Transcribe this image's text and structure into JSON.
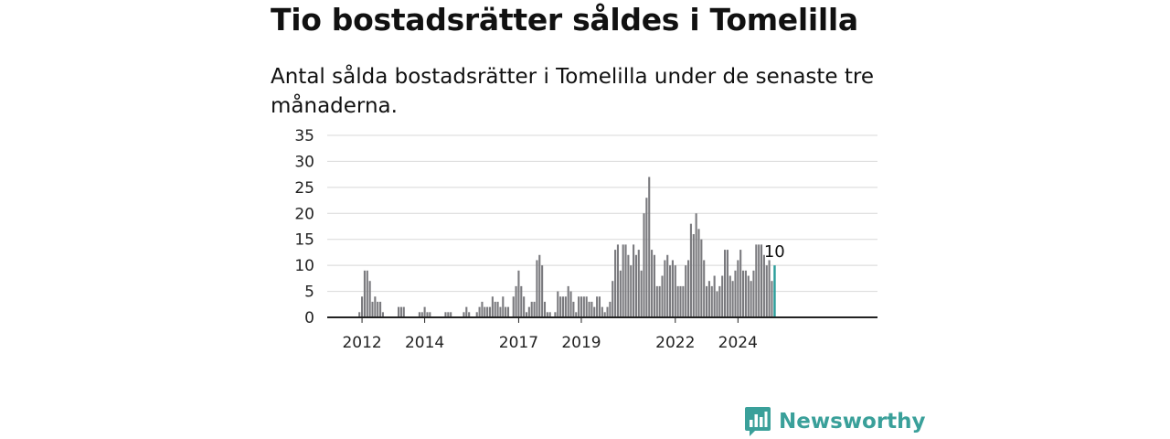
{
  "title": "Tio bostadsrätter såldes i Tomelilla",
  "subtitle": "Antal sålda bostadsrätter i Tomelilla under de senaste tre månaderna.",
  "brand": {
    "name": "Newsworthy",
    "icon": "newsworthy-logo-icon",
    "color": "#3aa09a"
  },
  "colors": {
    "bar": "#7a7a7e",
    "highlight": "#2a9d9a",
    "grid": "#d8d8d8",
    "axis": "#222222"
  },
  "chart_data": {
    "type": "bar",
    "title": "Tio bostadsrätter såldes i Tomelilla",
    "xlabel": "",
    "ylabel": "",
    "ylim": [
      0,
      35
    ],
    "yticks": [
      0,
      5,
      10,
      15,
      20,
      25,
      30,
      35
    ],
    "xtick_labels": [
      "2012",
      "2014",
      "2017",
      "2019",
      "2022",
      "2024"
    ],
    "grid": true,
    "x_start": "2011-10",
    "frequency": "monthly",
    "highlight_label": "10",
    "values": [
      0,
      0,
      1,
      4,
      9,
      9,
      7,
      3,
      4,
      3,
      3,
      1,
      0,
      0,
      0,
      0,
      0,
      2,
      2,
      2,
      0,
      0,
      0,
      0,
      0,
      1,
      1,
      2,
      1,
      1,
      0,
      0,
      0,
      0,
      0,
      1,
      1,
      1,
      0,
      0,
      0,
      0,
      1,
      2,
      1,
      0,
      0,
      1,
      2,
      3,
      2,
      2,
      2,
      4,
      3,
      3,
      2,
      4,
      2,
      2,
      0,
      4,
      6,
      9,
      6,
      4,
      1,
      2,
      3,
      3,
      11,
      12,
      10,
      3,
      1,
      1,
      0,
      1,
      5,
      4,
      4,
      4,
      6,
      5,
      3,
      1,
      4,
      4,
      4,
      4,
      3,
      3,
      2,
      4,
      4,
      2,
      1,
      2,
      3,
      7,
      13,
      14,
      9,
      14,
      14,
      12,
      10,
      14,
      12,
      13,
      9,
      20,
      23,
      27,
      13,
      12,
      6,
      6,
      8,
      11,
      12,
      10,
      11,
      10,
      6,
      6,
      6,
      10,
      11,
      18,
      16,
      20,
      17,
      15,
      11,
      6,
      7,
      6,
      8,
      5,
      6,
      8,
      13,
      13,
      8,
      7,
      9,
      11,
      13,
      9,
      9,
      8,
      7,
      9,
      14,
      14,
      14,
      12,
      10,
      11,
      7,
      10
    ]
  }
}
